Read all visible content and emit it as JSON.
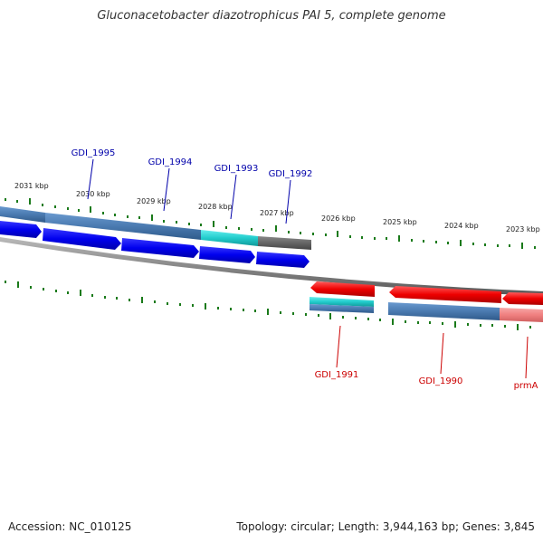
{
  "title": "Gluconacetobacter diazotrophicus PAI 5, complete genome",
  "footer": {
    "accession_label": "Accession:",
    "accession": "NC_010125",
    "topology_label": "Topology:",
    "topology": "circular",
    "length_label": "Length:",
    "length": "3,944,163 bp",
    "genes_label": "Genes:",
    "genes": "3,845"
  },
  "ticks_top": [
    "2031 kbp",
    "2030 kbp",
    "2029 kbp",
    "2028 kbp",
    "2027 kbp",
    "2026 kbp",
    "2025 kbp",
    "2024 kbp",
    "2023 kbp"
  ],
  "genes_top": [
    "GDI_1995",
    "GDI_1994",
    "GDI_1993",
    "GDI_1992"
  ],
  "genes_bottom": [
    "GDI_1991",
    "GDI_1990",
    "prmA"
  ],
  "colors": {
    "forward_cds": "#0000ee",
    "reverse_cds": "#ee0000",
    "gene_bar_blue": "#4a7ab0",
    "gene_bar_cyan": "#22cccc",
    "gene_bar_gray": "#666666",
    "gene_bar_pink": "#f08080",
    "backbone": "#888888",
    "tick": "#1a7a1a",
    "top_label": "#0000aa",
    "bottom_label": "#cc0000"
  }
}
